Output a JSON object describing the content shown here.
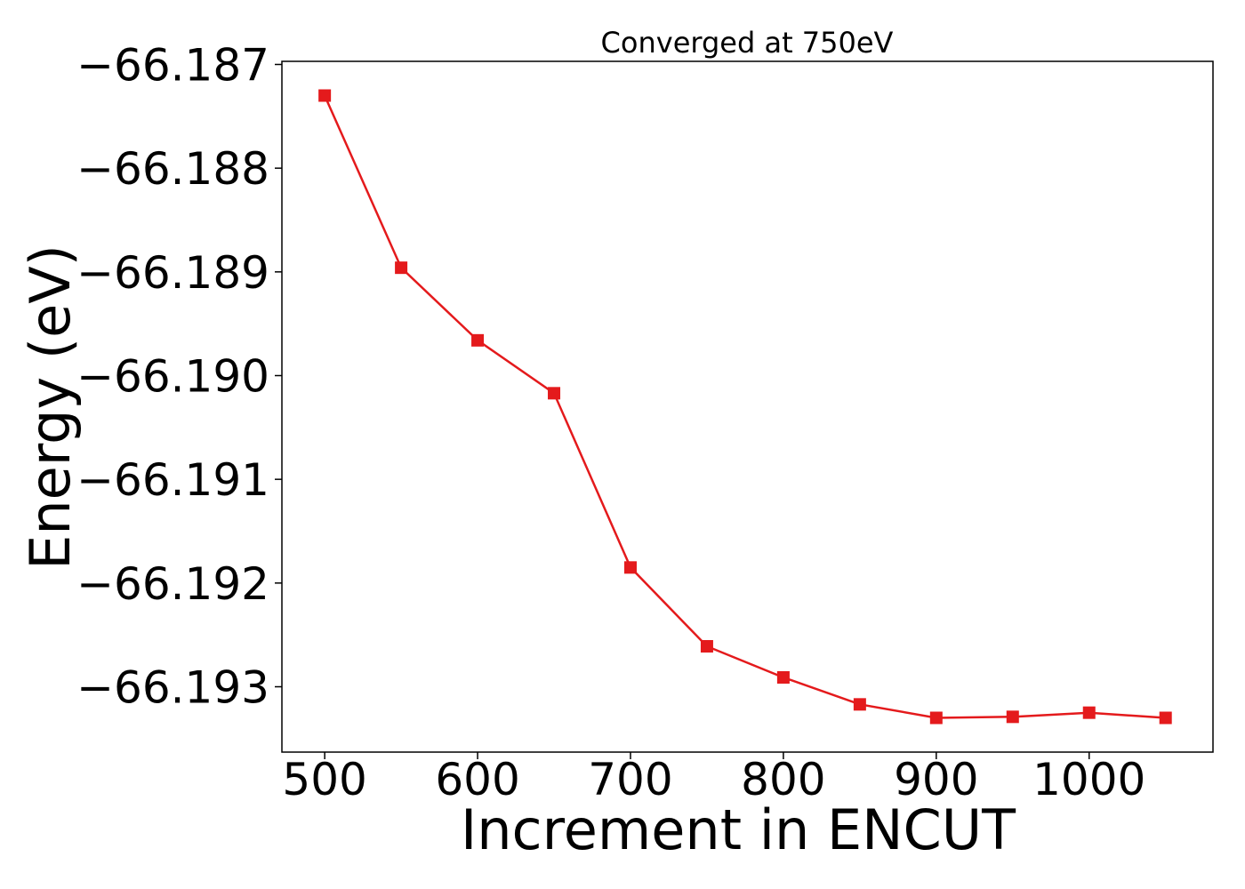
{
  "chart_data": {
    "type": "line",
    "title": "Converged at 750eV",
    "xlabel": "Increment in ENCUT",
    "ylabel": "Energy (eV)",
    "xlim": [
      472,
      1081
    ],
    "ylim": [
      -66.19363,
      -66.18697
    ],
    "x_ticks": [
      500,
      600,
      700,
      800,
      900,
      1000
    ],
    "x_tick_labels": [
      "500",
      "600",
      "700",
      "800",
      "900",
      "1000"
    ],
    "y_ticks": [
      -66.187,
      -66.188,
      -66.189,
      -66.19,
      -66.191,
      -66.192,
      -66.193
    ],
    "y_tick_labels": [
      "−66.187",
      "−66.188",
      "−66.189",
      "−66.190",
      "−66.191",
      "−66.192",
      "−66.193"
    ],
    "grid": false,
    "series": [
      {
        "color": "#e41a1c",
        "marker": "square",
        "x": [
          500,
          550,
          600,
          650,
          700,
          750,
          800,
          850,
          900,
          950,
          1000,
          1050
        ],
        "y": [
          -66.1873,
          -66.18896,
          -66.18966,
          -66.19017,
          -66.19185,
          -66.19261,
          -66.19291,
          -66.19317,
          -66.1933,
          -66.19329,
          -66.19325,
          -66.1933
        ]
      }
    ]
  }
}
